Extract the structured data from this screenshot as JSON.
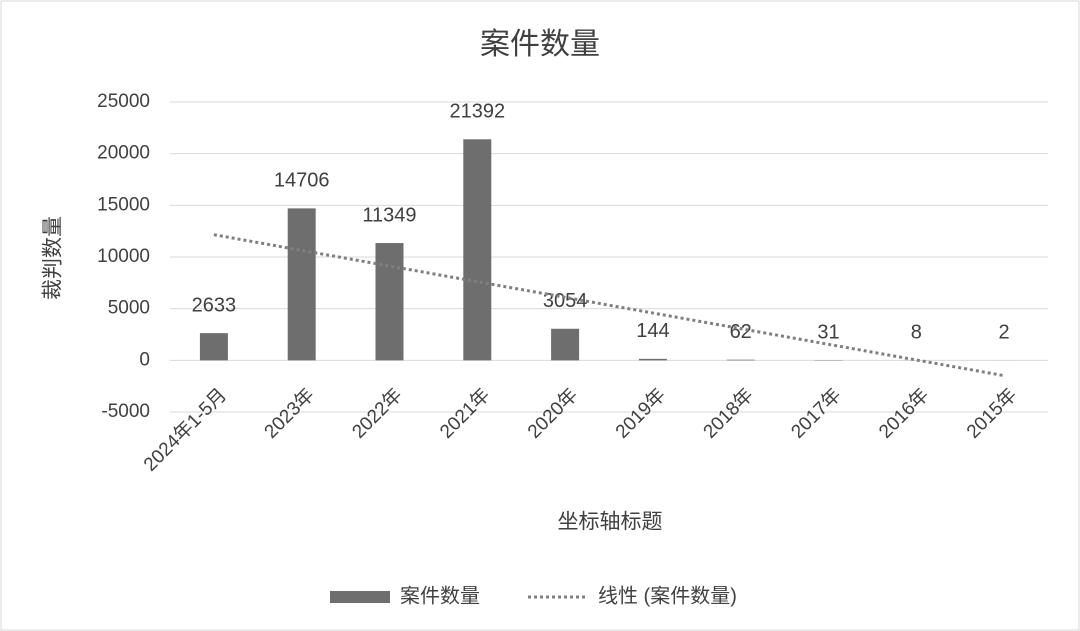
{
  "chart_data": {
    "type": "bar",
    "title": "案件数量",
    "x_label": "坐标轴标题",
    "y_label": "裁判数量",
    "categories": [
      "2024年1-5月",
      "2023年",
      "2022年",
      "2021年",
      "2020年",
      "2019年",
      "2018年",
      "2017年",
      "2016年",
      "2015年"
    ],
    "series": [
      {
        "name": "案件数量",
        "color": "#6e6e6e",
        "values": [
          2633,
          14706,
          11349,
          21392,
          3054,
          144,
          62,
          31,
          8,
          2
        ]
      },
      {
        "name": "线性 (案件数量)",
        "color": "#7f7f7f",
        "style": "dotted",
        "values": [
          12158,
          10642,
          9127,
          7611,
          6096,
          4580,
          3065,
          1549,
          34,
          -1482
        ]
      }
    ],
    "data_labels": true,
    "ylim": [
      -5000,
      25000
    ],
    "yticks": [
      -5000,
      0,
      5000,
      10000,
      15000,
      20000,
      25000
    ],
    "grid": true,
    "legend": "bottom"
  }
}
